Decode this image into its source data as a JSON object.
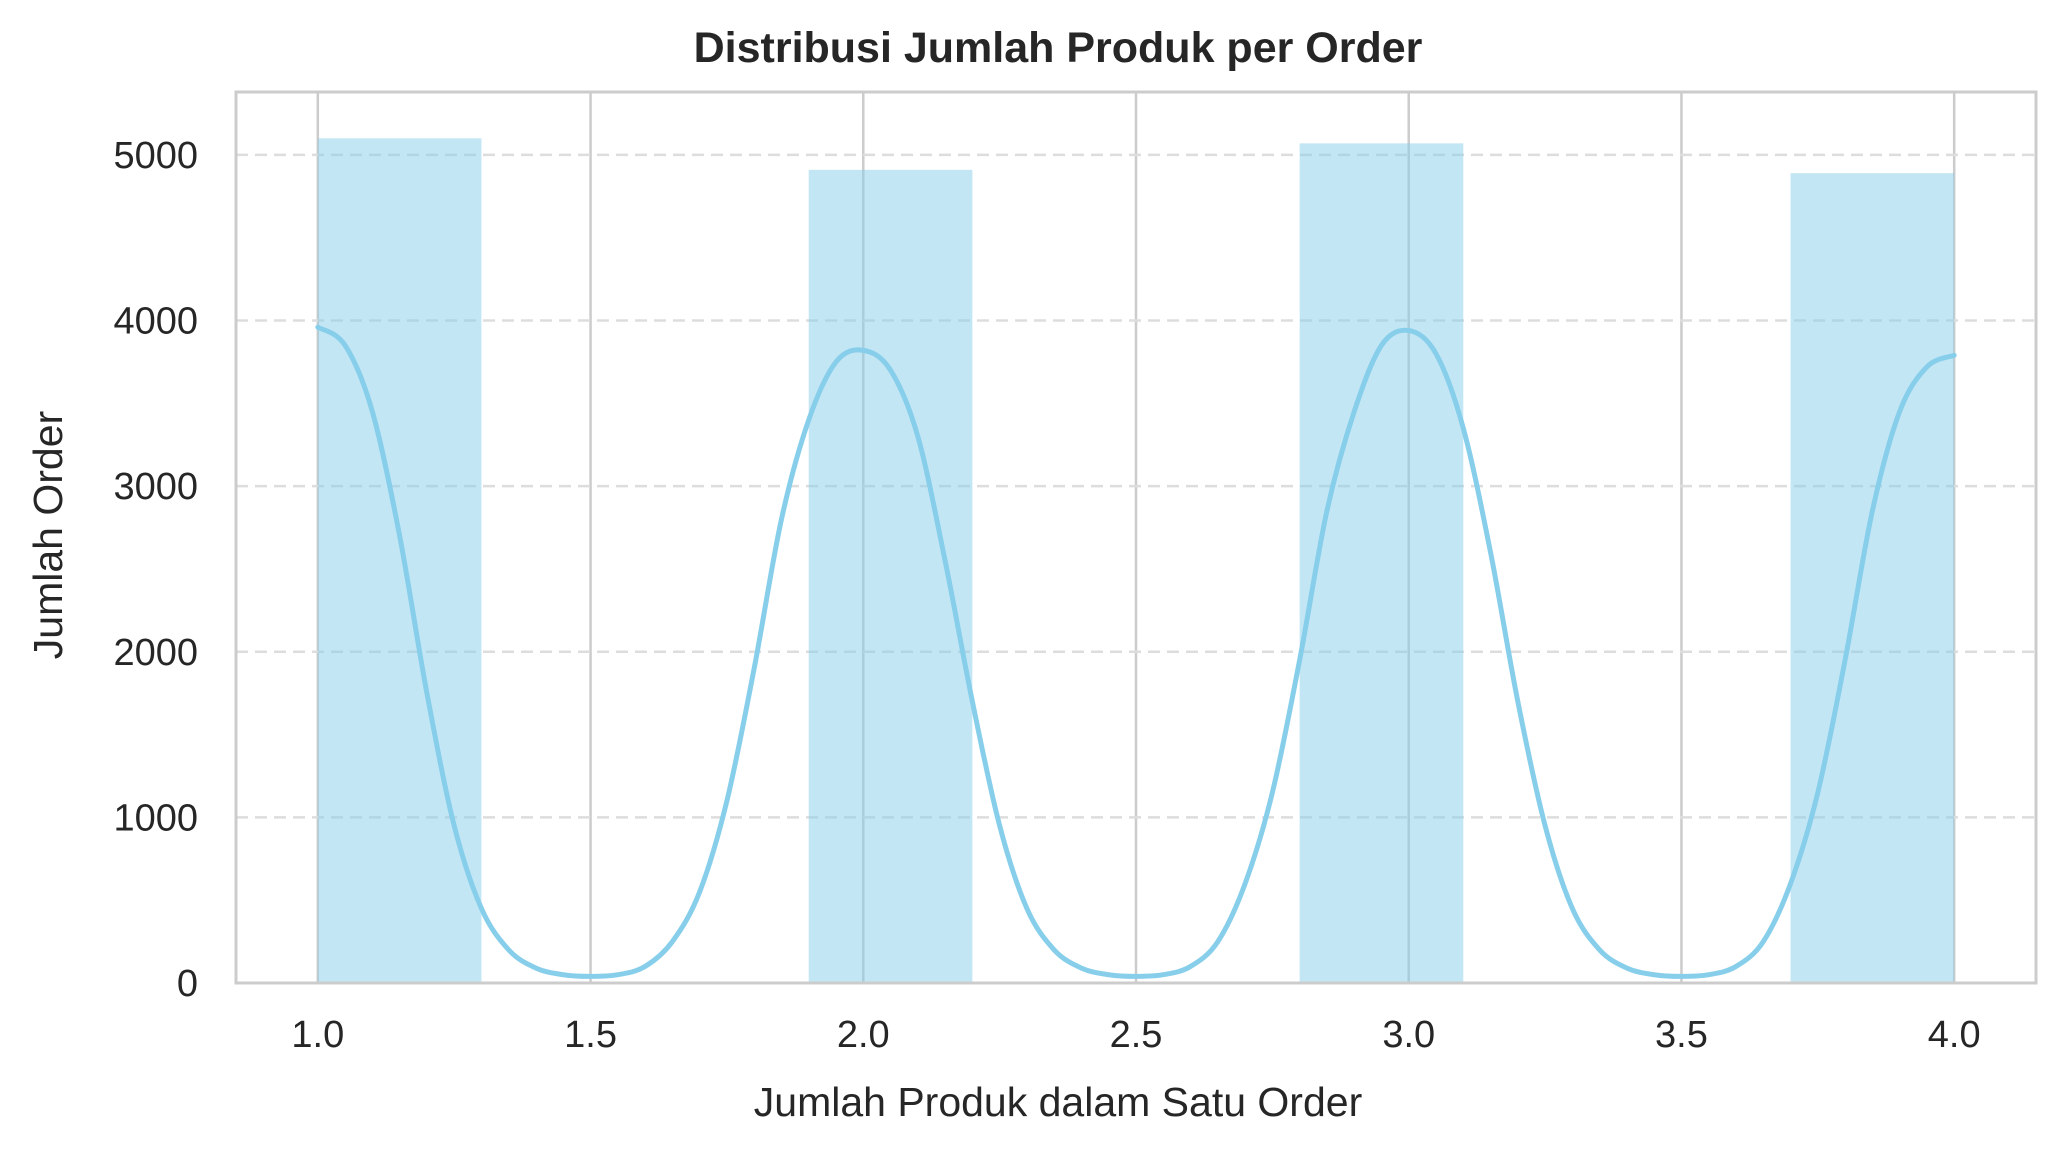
{
  "chart_data": {
    "type": "bar",
    "subtype": "histogram-with-kde",
    "title": "Distribusi Jumlah Produk per Order",
    "xlabel": "Jumlah Produk dalam Satu Order",
    "ylabel": "Jumlah Order",
    "xlim": [
      0.85,
      4.15
    ],
    "ylim": [
      0,
      5380
    ],
    "x_ticks": [
      1.0,
      1.5,
      2.0,
      2.5,
      3.0,
      3.5,
      4.0
    ],
    "x_tick_labels": [
      "1.0",
      "1.5",
      "2.0",
      "2.5",
      "3.0",
      "3.5",
      "4.0"
    ],
    "y_ticks": [
      0,
      1000,
      2000,
      3000,
      4000,
      5000
    ],
    "y_tick_labels": [
      "0",
      "1000",
      "2000",
      "3000",
      "4000",
      "5000"
    ],
    "bins": [
      {
        "x0": 1.0,
        "x1": 1.3,
        "value": 5100
      },
      {
        "x0": 1.3,
        "x1": 1.6,
        "value": 0
      },
      {
        "x0": 1.6,
        "x1": 1.9,
        "value": 0
      },
      {
        "x0": 1.9,
        "x1": 2.2,
        "value": 4910
      },
      {
        "x0": 2.2,
        "x1": 2.5,
        "value": 0
      },
      {
        "x0": 2.5,
        "x1": 2.8,
        "value": 0
      },
      {
        "x0": 2.8,
        "x1": 3.1,
        "value": 5070
      },
      {
        "x0": 3.1,
        "x1": 3.4,
        "value": 0
      },
      {
        "x0": 3.4,
        "x1": 3.7,
        "value": 0
      },
      {
        "x0": 3.7,
        "x1": 4.0,
        "value": 4890
      }
    ],
    "kde": {
      "x": [
        1.0,
        1.05,
        1.1,
        1.15,
        1.2,
        1.25,
        1.3,
        1.35,
        1.4,
        1.45,
        1.5,
        1.55,
        1.6,
        1.65,
        1.7,
        1.75,
        1.8,
        1.85,
        1.9,
        1.95,
        2.0,
        2.05,
        2.1,
        2.15,
        2.2,
        2.25,
        2.3,
        2.35,
        2.4,
        2.45,
        2.5,
        2.55,
        2.6,
        2.65,
        2.7,
        2.75,
        2.8,
        2.85,
        2.9,
        2.95,
        3.0,
        3.05,
        3.1,
        3.15,
        3.2,
        3.25,
        3.3,
        3.35,
        3.4,
        3.45,
        3.5,
        3.55,
        3.6,
        3.65,
        3.7,
        3.75,
        3.8,
        3.85,
        3.9,
        3.95,
        4.0
      ],
      "y": [
        3960,
        3850,
        3450,
        2700,
        1750,
        950,
        450,
        200,
        90,
        50,
        40,
        50,
        100,
        250,
        550,
        1100,
        1900,
        2800,
        3400,
        3750,
        3820,
        3700,
        3300,
        2550,
        1700,
        950,
        450,
        200,
        90,
        50,
        40,
        50,
        100,
        250,
        600,
        1150,
        1950,
        2850,
        3450,
        3850,
        3940,
        3800,
        3350,
        2600,
        1700,
        950,
        450,
        200,
        90,
        50,
        40,
        50,
        100,
        250,
        600,
        1150,
        1950,
        2850,
        3450,
        3720,
        3790
      ]
    },
    "grid": {
      "x": true,
      "y": true,
      "y_style": "dashed"
    },
    "colors": {
      "bar": "#87ceeb",
      "bar_opacity": 0.5,
      "kde_line": "#87ceeb",
      "grid": "#cccccc",
      "axes_edge": "#cccccc",
      "text": "#262626"
    }
  }
}
